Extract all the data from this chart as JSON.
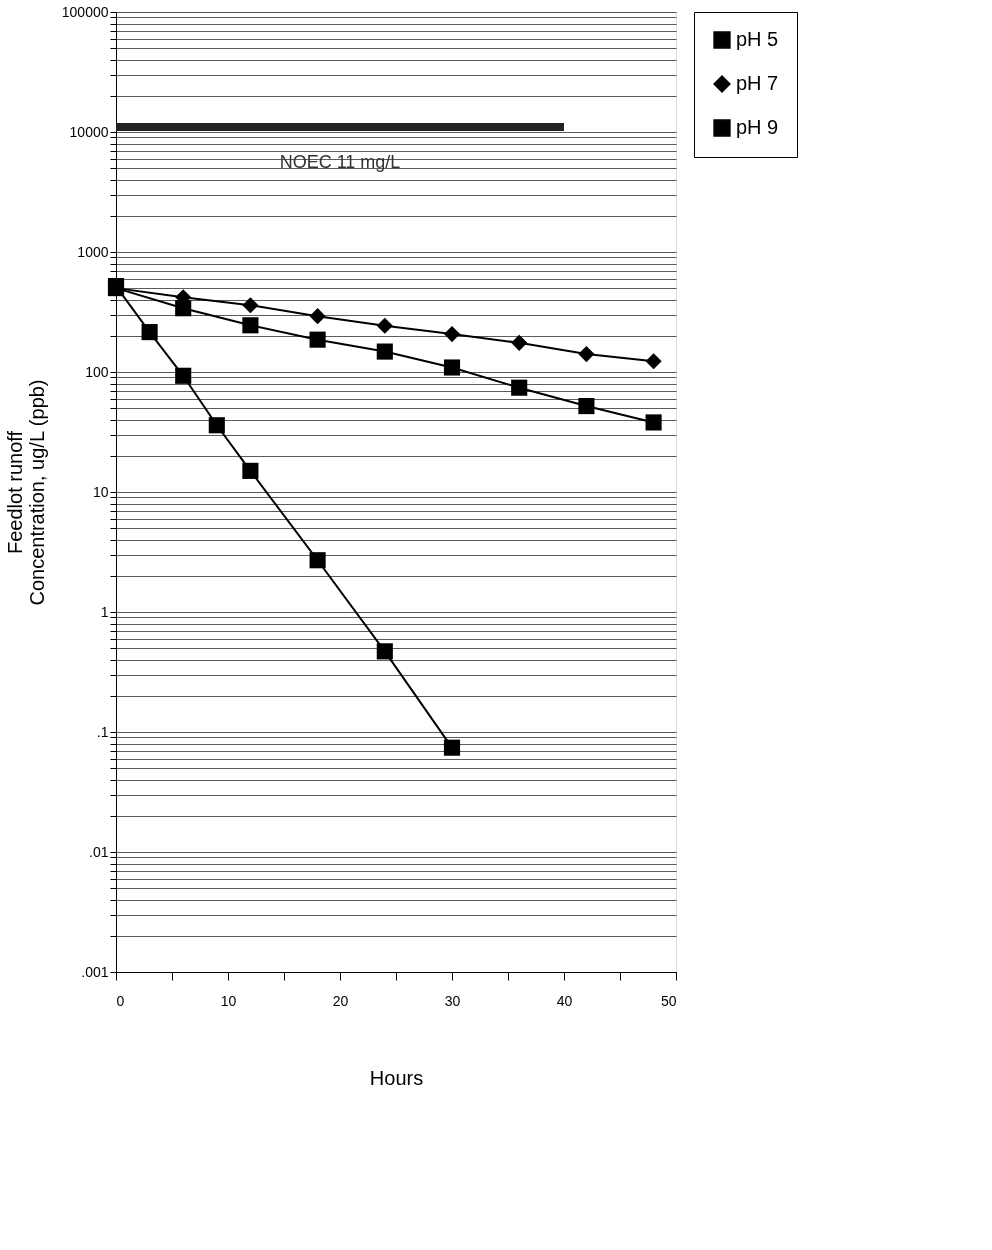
{
  "chart_data": {
    "type": "line",
    "xlabel": "Hours",
    "ylabel": "Feedlot runoff\nConcentration, ug/L (ppb)",
    "log": "y",
    "grid": "y",
    "legend": "right",
    "xlim": [
      0,
      50
    ],
    "xticks": [
      0,
      {
        "value": 5,
        "label": null
      },
      10,
      {
        "value": 15,
        "label": null
      },
      20,
      {
        "value": 25,
        "label": null
      },
      30,
      {
        "value": 35,
        "label": null
      },
      40,
      {
        "value": 45,
        "label": null
      },
      50
    ],
    "ylim": [
      0.001,
      100000
    ],
    "yticks": [
      {
        "value": 0.001,
        "label": ".001"
      },
      {
        "value": 0.002,
        "label": null
      },
      {
        "value": 0.003,
        "label": null
      },
      {
        "value": 0.004,
        "label": null
      },
      {
        "value": 0.005,
        "label": null
      },
      {
        "value": 0.006,
        "label": null
      },
      {
        "value": 0.007,
        "label": null
      },
      {
        "value": 0.008,
        "label": null
      },
      {
        "value": 0.009,
        "label": null
      },
      {
        "value": 0.01,
        "label": ".01"
      },
      {
        "value": 0.02,
        "label": null
      },
      {
        "value": 0.03,
        "label": null
      },
      {
        "value": 0.04,
        "label": null
      },
      {
        "value": 0.05,
        "label": null
      },
      {
        "value": 0.06,
        "label": null
      },
      {
        "value": 0.07,
        "label": null
      },
      {
        "value": 0.08,
        "label": null
      },
      {
        "value": 0.09,
        "label": null
      },
      {
        "value": 0.1,
        "label": ".1"
      },
      {
        "value": 0.2,
        "label": null
      },
      {
        "value": 0.3,
        "label": null
      },
      {
        "value": 0.4,
        "label": null
      },
      {
        "value": 0.5,
        "label": null
      },
      {
        "value": 0.6,
        "label": null
      },
      {
        "value": 0.7,
        "label": null
      },
      {
        "value": 0.8,
        "label": null
      },
      {
        "value": 0.9,
        "label": null
      },
      1,
      {
        "value": 2,
        "label": null
      },
      {
        "value": 3,
        "label": null
      },
      {
        "value": 4,
        "label": null
      },
      {
        "value": 5,
        "label": null
      },
      {
        "value": 6,
        "label": null
      },
      {
        "value": 7,
        "label": null
      },
      {
        "value": 8,
        "label": null
      },
      {
        "value": 9,
        "label": null
      },
      10,
      {
        "value": 20,
        "label": null
      },
      {
        "value": 30,
        "label": null
      },
      {
        "value": 40,
        "label": null
      },
      {
        "value": 50,
        "label": null
      },
      {
        "value": 60,
        "label": null
      },
      {
        "value": 70,
        "label": null
      },
      {
        "value": 80,
        "label": null
      },
      {
        "value": 90,
        "label": null
      },
      100,
      {
        "value": 200,
        "label": null
      },
      {
        "value": 300,
        "label": null
      },
      {
        "value": 400,
        "label": null
      },
      {
        "value": 500,
        "label": null
      },
      {
        "value": 600,
        "label": null
      },
      {
        "value": 700,
        "label": null
      },
      {
        "value": 800,
        "label": null
      },
      {
        "value": 900,
        "label": null
      },
      1000,
      {
        "value": 2000,
        "label": null
      },
      {
        "value": 3000,
        "label": null
      },
      {
        "value": 4000,
        "label": null
      },
      {
        "value": 5000,
        "label": null
      },
      {
        "value": 6000,
        "label": null
      },
      {
        "value": 7000,
        "label": null
      },
      {
        "value": 8000,
        "label": null
      },
      {
        "value": 9000,
        "label": null
      },
      10000,
      {
        "value": 20000,
        "label": null
      },
      {
        "value": 30000,
        "label": null
      },
      {
        "value": 40000,
        "label": null
      },
      {
        "value": 50000,
        "label": null
      },
      {
        "value": 60000,
        "label": null
      },
      {
        "value": 70000,
        "label": null
      },
      {
        "value": 80000,
        "label": null
      },
      {
        "value": 90000,
        "label": null
      },
      100000
    ],
    "series": [
      {
        "name": "pH 5",
        "color": "#000000",
        "marker": "square",
        "x": [
          0,
          6,
          12,
          18,
          24,
          30,
          36,
          42,
          48
        ],
        "values": [
          500,
          340,
          245,
          186,
          148,
          109,
          74,
          52,
          38
        ]
      },
      {
        "name": "pH 7",
        "color": "#000000",
        "marker": "diamond",
        "x": [
          0,
          6,
          12,
          18,
          24,
          30,
          36,
          42,
          48
        ],
        "values": [
          500,
          420,
          360,
          292,
          243,
          207,
          175,
          141,
          123
        ]
      },
      {
        "name": "pH 9",
        "color": "#000000",
        "marker": "square",
        "x": [
          0,
          3,
          6,
          9,
          12,
          18,
          24,
          30
        ],
        "values": [
          520,
          215,
          93,
          36,
          15,
          2.7,
          0.47,
          0.074
        ]
      },
      {
        "color": "#222222",
        "marker": "none",
        "x": [
          0,
          40
        ],
        "values": [
          11000,
          11000
        ]
      }
    ],
    "annotations": [
      {
        "text": "NOEC 11 mg/L",
        "x": 20,
        "y": 11000
      }
    ]
  }
}
